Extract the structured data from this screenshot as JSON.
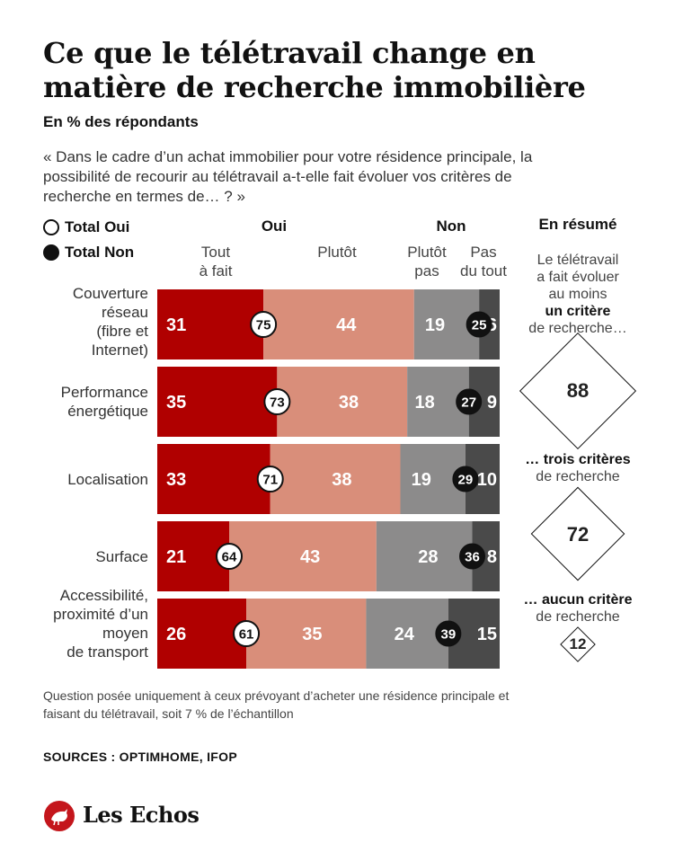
{
  "title": "Ce que le télétravail change en matière de recherche immobilière",
  "subtitle": "En % des répondants",
  "question": "« Dans le cadre d’un achat immobilier pour votre résidence principale, la possibilité de recourir au télétravail a-t-elle fait évoluer vos critères de recherche en termes de… ? »",
  "legend": {
    "total_oui": "Total Oui",
    "total_non": "Total Non"
  },
  "headers": {
    "oui": "Oui",
    "non": "Non",
    "tout_a_fait": [
      "Tout",
      "à fait"
    ],
    "plutot": "Plutôt",
    "plutot_pas": [
      "Plutôt",
      "pas"
    ],
    "pas_du_tout": [
      "Pas",
      "du tout"
    ]
  },
  "colors": {
    "tout_a_fait": "#b00000",
    "plutot": "#d98e7a",
    "plutot_pas": "#8c8b8b",
    "pas_du_tout": "#4a4a4a"
  },
  "chart_data": {
    "type": "bar",
    "stacked": true,
    "orientation": "horizontal",
    "categories": [
      [
        "Couverture",
        "réseau",
        "(fibre et",
        "Internet)"
      ],
      [
        "Performance",
        "énergétique"
      ],
      [
        "Localisation"
      ],
      [
        "Surface"
      ],
      [
        "Accessibilité,",
        "proximité d’un",
        "moyen",
        "de transport"
      ]
    ],
    "series": [
      {
        "name": "Tout à fait",
        "values": [
          31,
          35,
          33,
          21,
          26
        ]
      },
      {
        "name": "Plutôt",
        "values": [
          44,
          38,
          38,
          43,
          35
        ]
      },
      {
        "name": "Plutôt pas",
        "values": [
          19,
          18,
          19,
          28,
          24
        ]
      },
      {
        "name": "Pas du tout",
        "values": [
          6,
          9,
          10,
          8,
          15
        ]
      }
    ],
    "total_oui": [
      75,
      73,
      71,
      64,
      61
    ],
    "total_non": [
      25,
      27,
      29,
      36,
      39
    ]
  },
  "resume": {
    "header": "En résumé",
    "block1_lines": [
      "Le télétravail",
      "a fait évoluer",
      "au moins"
    ],
    "block1_bold": "un critère",
    "block1_end": "de recherche…",
    "value1": "88",
    "block2_bold": "… trois critères",
    "block2_end": "de recherche",
    "value2": "72",
    "block3_bold": "… aucun critère",
    "block3_end": "de recherche",
    "value3": "12"
  },
  "footnote": "Question posée uniquement à ceux prévoyant d’acheter une résidence principale et faisant du télétravail, soit 7 % de l’échantillon",
  "sources": "SOURCES : OPTIMHOME, IFOP",
  "brand": "Les Echos",
  "brand_logo": "les-echos-rooster-logo"
}
